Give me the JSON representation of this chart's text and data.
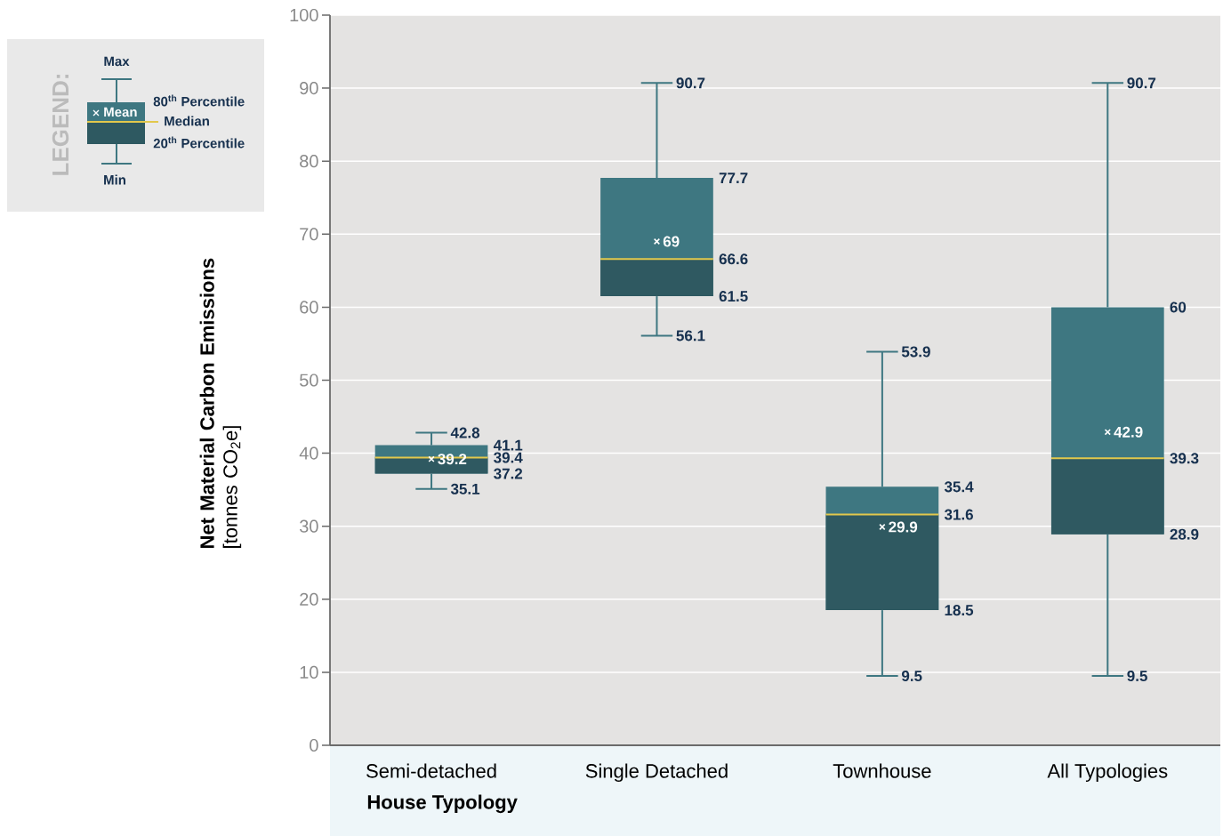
{
  "chart_data": {
    "type": "box",
    "categories": [
      "Semi-detached",
      "Single Detached",
      "Townhouse",
      "All Typologies"
    ],
    "xlabel": "House Typology",
    "ylabel": "**Net Material Carbon Emissions** [tonnes CO$_{2}$e]",
    "ylim": [
      0,
      100
    ],
    "yticks": [
      0,
      10,
      20,
      30,
      40,
      50,
      60,
      70,
      80,
      90,
      100
    ],
    "grid": "y",
    "series": [
      {
        "color": "#3e7781",
        "boxes": [
          {
            "low": 35.1,
            "q1": 37.2,
            "median": 39.4,
            "q3": 41.1,
            "high": 42.8,
            "mean": 39.2
          },
          {
            "low": 56.1,
            "q1": 61.5,
            "median": 66.6,
            "q3": 77.7,
            "high": 90.7,
            "mean": 69
          },
          {
            "low": 9.5,
            "q1": 18.5,
            "median": 31.6,
            "q3": 35.4,
            "high": 53.9,
            "mean": 29.9
          },
          {
            "low": 9.5,
            "q1": 28.9,
            "median": 39.3,
            "q3": 60,
            "high": 90.7,
            "mean": 42.9
          }
        ]
      }
    ],
    "annotations": [
      "LEGEND:",
      "Max",
      "80$^{th}$ Percentile",
      "Mean",
      "Median",
      "20$^{th}$ Percentile",
      "Min",
      {
        "text": "42.8",
        "x": "Semi-detached",
        "y": 42.8
      },
      {
        "text": "35.1",
        "x": "Semi-detached",
        "y": 35.1
      },
      {
        "text": "90.7",
        "x": "Single Detached",
        "y": 90.7
      },
      {
        "text": "56.1",
        "x": "Single Detached",
        "y": 56.1
      },
      {
        "text": "53.9",
        "x": "Townhouse",
        "y": 53.9
      },
      {
        "text": "9.5",
        "x": "Townhouse",
        "y": 9.5
      },
      {
        "text": "90.7",
        "x": "All Typologies",
        "y": 90.7
      },
      {
        "text": "9.5",
        "x": "All Typologies",
        "y": 9.5
      },
      "41.1",
      "39.4",
      "39.2",
      "37.2",
      "77.7",
      "66.6",
      "69",
      "61.5",
      "35.4",
      "31.6",
      "29.9",
      "18.5",
      "60",
      "39.3",
      "42.9",
      "28.9"
    ]
  }
}
